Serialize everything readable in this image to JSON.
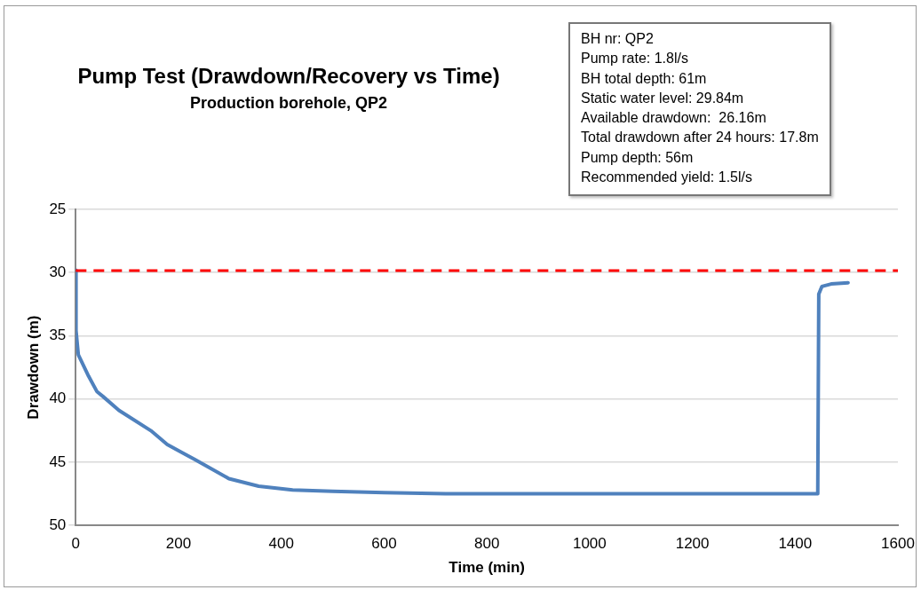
{
  "chart_data": {
    "type": "line",
    "title": "Pump Test (Drawdown/Recovery vs Time)",
    "subtitle": "Production borehole, QP2",
    "xlabel": "Time (min)",
    "ylabel": "Drawdown (m)",
    "series": [
      {
        "color": "#4f81bd",
        "x": [
          0,
          0.5,
          5,
          25,
          41,
          53,
          84,
          146,
          178,
          232,
          298,
          356,
          422,
          500,
          600,
          720,
          900,
          1100,
          1300,
          1440,
          1444,
          1446,
          1452,
          1470,
          1503
        ],
        "values": [
          29.8,
          34.6,
          36.5,
          38.2,
          39.4,
          39.8,
          40.9,
          42.5,
          43.6,
          44.8,
          46.3,
          46.9,
          47.2,
          47.3,
          47.4,
          47.5,
          47.5,
          47.5,
          47.5,
          47.5,
          47.5,
          31.7,
          31.1,
          30.9,
          30.8
        ]
      }
    ],
    "xlim": [
      0,
      1600
    ],
    "xticks": [
      0,
      200,
      400,
      600,
      800,
      1000,
      1200,
      1400,
      1600
    ],
    "ylim": [
      50,
      25
    ],
    "yticks": [
      25,
      30,
      35,
      40,
      45,
      50
    ],
    "grid": "y",
    "legend": false,
    "marker": "none",
    "line_style": "solid",
    "ref_lines": [
      {
        "axis": "y",
        "value": 29.84,
        "color": "#ff0000",
        "line_style": "dashed"
      }
    ],
    "annotations": [
      "BH nr: QP2",
      "Pump rate: 1.8l/s",
      "BH total depth: 61m",
      "Static water level: 29.84m",
      "Available drawdown:  26.16m",
      "Total drawdown after 24 hours: 17.8m",
      "Pump depth: 56m",
      "Recommended yield: 1.5l/s"
    ]
  }
}
